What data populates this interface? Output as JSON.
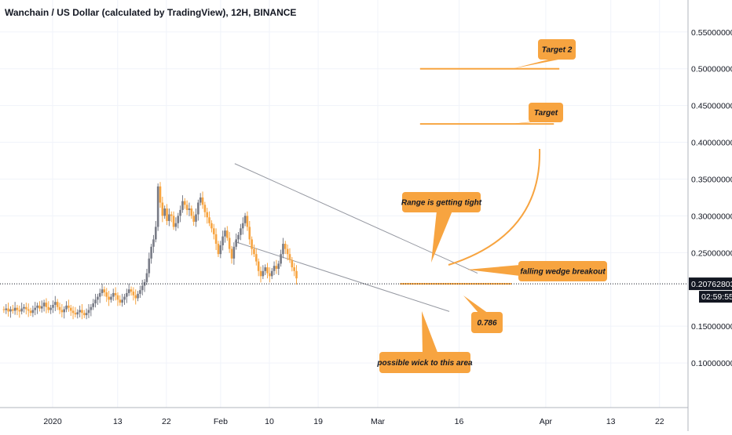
{
  "header": {
    "title": "Wanchain / US Dollar (calculated by TradingView), 12H, BINANCE"
  },
  "chart_data": {
    "type": "candlestick",
    "title": "Wanchain / US Dollar (calculated by TradingView), 12H, BINANCE",
    "ylim": [
      0.04,
      0.6
    ],
    "y_ticks": [
      0.1,
      0.15,
      0.25,
      0.3,
      0.35,
      0.4,
      0.45,
      0.5,
      0.55
    ],
    "y_tick_labels": [
      "0.10000000",
      "0.15000000",
      "0.25000000",
      "0.30000000",
      "0.35000000",
      "0.40000000",
      "0.45000000",
      "0.50000000",
      "0.55000000"
    ],
    "x_ticks": [
      {
        "label": "2020",
        "day": 0
      },
      {
        "label": "13",
        "day": 12
      },
      {
        "label": "22",
        "day": 21
      },
      {
        "label": "Feb",
        "day": 31
      },
      {
        "label": "10",
        "day": 40
      },
      {
        "label": "19",
        "day": 49
      },
      {
        "label": "Mar",
        "day": 60
      },
      {
        "label": "16",
        "day": 75
      },
      {
        "label": "Apr",
        "day": 91
      },
      {
        "label": "13",
        "day": 103
      },
      {
        "label": "22",
        "day": 112
      }
    ],
    "x_range_days": [
      -9,
      117
    ],
    "current_price": {
      "value": 0.20762803,
      "label": "0.20762803",
      "countdown": "02:59:55"
    },
    "colors": {
      "up": "#787b86",
      "down": "#f7a440",
      "annotation": "#f7a440",
      "wedge": "#9598a1",
      "price_tag": "#131722"
    },
    "candle_days": [
      -9,
      45
    ],
    "candles_close": [
      0.172,
      0.174,
      0.17,
      0.173,
      0.171,
      0.175,
      0.172,
      0.17,
      0.174,
      0.176,
      0.173,
      0.171,
      0.168,
      0.172,
      0.175,
      0.178,
      0.174,
      0.177,
      0.182,
      0.176,
      0.172,
      0.175,
      0.179,
      0.183,
      0.176,
      0.172,
      0.169,
      0.173,
      0.178,
      0.175,
      0.171,
      0.168,
      0.166,
      0.169,
      0.172,
      0.168,
      0.165,
      0.168,
      0.172,
      0.176,
      0.181,
      0.186,
      0.19,
      0.195,
      0.2,
      0.196,
      0.19,
      0.186,
      0.19,
      0.195,
      0.192,
      0.186,
      0.182,
      0.186,
      0.19,
      0.195,
      0.2,
      0.197,
      0.192,
      0.188,
      0.194,
      0.199,
      0.205,
      0.21,
      0.222,
      0.242,
      0.258,
      0.268,
      0.285,
      0.34,
      0.318,
      0.3,
      0.31,
      0.293,
      0.302,
      0.3,
      0.285,
      0.29,
      0.3,
      0.308,
      0.32,
      0.315,
      0.308,
      0.31,
      0.3,
      0.292,
      0.302,
      0.318,
      0.325,
      0.315,
      0.305,
      0.298,
      0.29,
      0.283,
      0.275,
      0.262,
      0.248,
      0.26,
      0.272,
      0.28,
      0.27,
      0.255,
      0.242,
      0.258,
      0.268,
      0.274,
      0.283,
      0.29,
      0.3,
      0.285,
      0.268,
      0.255,
      0.248,
      0.238,
      0.225,
      0.218,
      0.225,
      0.23,
      0.222,
      0.218,
      0.225,
      0.232,
      0.228,
      0.235,
      0.248,
      0.262,
      0.255,
      0.248,
      0.24,
      0.23,
      0.225,
      0.215
    ],
    "candles_open_first": 0.173,
    "annotations": [
      {
        "text": "Target 2",
        "level": 0.5
      },
      {
        "text": "Target",
        "level": 0.425
      },
      {
        "text": "Range is getting tight"
      },
      {
        "text": "falling wedge breakout"
      },
      {
        "text": "0.786",
        "level": 0.2076
      },
      {
        "text": "possible wick to this area"
      }
    ]
  }
}
